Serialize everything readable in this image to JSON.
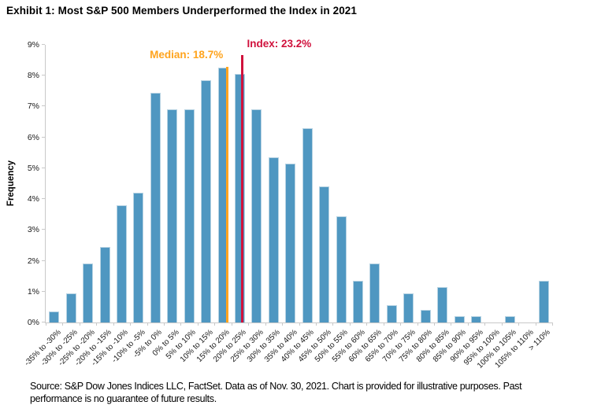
{
  "title": "Exhibit 1: Most S&P 500 Members Underperformed the Index in 2021",
  "source": {
    "lines": [
      "Source: S&P Dow Jones Indices LLC, FactSet. Data as of Nov. 30, 2021. Chart is provided for illustrative purposes. Past",
      "performance is no guarantee of future results."
    ]
  },
  "chart_data": {
    "type": "bar",
    "title": "Exhibit 1: Most S&P 500 Members Underperformed the Index in 2021",
    "xlabel": "",
    "ylabel": "Frequency",
    "ylim": [
      0,
      9
    ],
    "ytick_step": 1,
    "ytick_suffix": "%",
    "grid": false,
    "legend": "none",
    "bar_color": "#4F97C1",
    "axis_color": "#c9c9c9",
    "bin_start": -35,
    "bin_width": 5,
    "categories": [
      "-35% to -30%",
      "-30% to -25%",
      "-25% to -20%",
      "-20% to -15%",
      "-15% to -10%",
      "-10% to -5%",
      "-5% to 0%",
      "0% to 5%",
      "5% to 10%",
      "10% to 15%",
      "15% to 20%",
      "20% to 25%",
      "25% to 30%",
      "30% to 35%",
      "35% to 40%",
      "40% to 45%",
      "45% to 50%",
      "50% to 55%",
      "55% to 60%",
      "60% to 65%",
      "65% to 70%",
      "70% to 75%",
      "75% to 80%",
      "80% to 85%",
      "85% to 90%",
      "90% to 95%",
      "95% to 100%",
      "100% to 105%",
      "105% to 110%",
      "> 110%"
    ],
    "values": [
      0.35,
      0.95,
      1.9,
      2.45,
      3.8,
      4.2,
      7.45,
      6.9,
      6.9,
      7.85,
      8.25,
      8.05,
      6.9,
      5.35,
      5.15,
      6.3,
      4.4,
      3.45,
      1.35,
      1.9,
      0.55,
      0.95,
      0.4,
      1.15,
      0.2,
      0.2,
      0,
      0.2,
      0,
      1.35
    ],
    "annotations": [
      {
        "id": "median",
        "label": "Median: 18.7%",
        "value": 18.7,
        "color": "#FFA41E"
      },
      {
        "id": "index",
        "label": "Index: 23.2%",
        "value": 23.2,
        "color": "#D0113C"
      }
    ]
  }
}
